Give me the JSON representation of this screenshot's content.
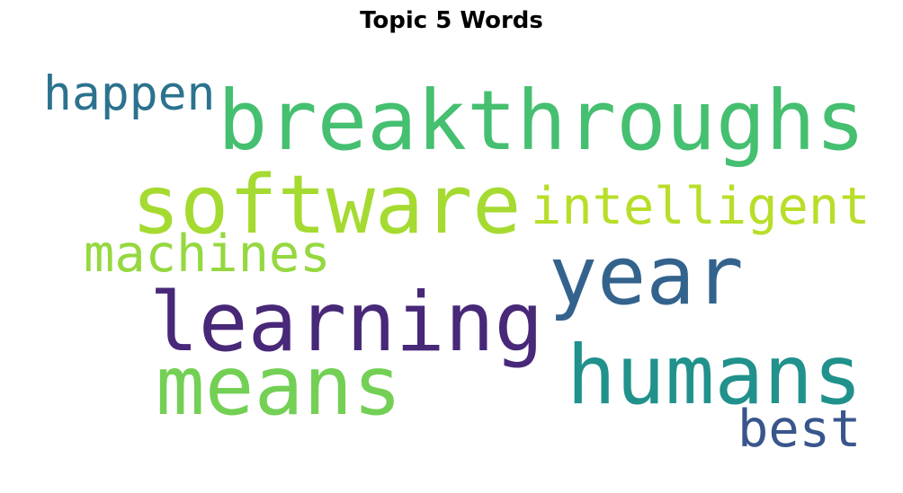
{
  "title": "Topic 5 Words",
  "words": [
    {
      "text": "breakthroughs",
      "color": "#45bf70"
    },
    {
      "text": "software",
      "color": "#a5da31"
    },
    {
      "text": "intelligent",
      "color": "#b8de29"
    },
    {
      "text": "happen",
      "color": "#2c728e"
    },
    {
      "text": "machines",
      "color": "#95d840"
    },
    {
      "text": "year",
      "color": "#33638d"
    },
    {
      "text": "learning",
      "color": "#482878"
    },
    {
      "text": "means",
      "color": "#73d055"
    },
    {
      "text": "humans",
      "color": "#21918c"
    },
    {
      "text": "best",
      "color": "#39568c"
    }
  ]
}
